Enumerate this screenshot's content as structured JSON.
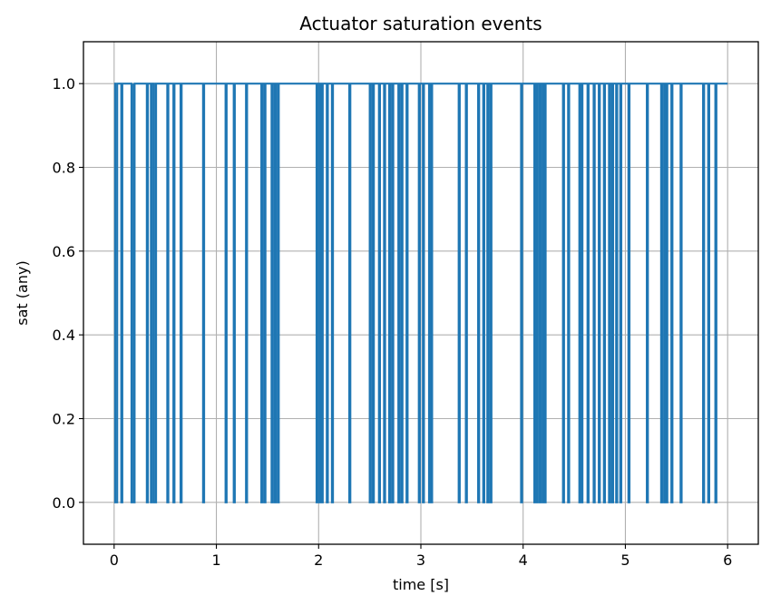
{
  "chart_data": {
    "type": "line",
    "title": "Actuator saturation events",
    "xlabel": "time [s]",
    "ylabel": "sat (any)",
    "xlim": [
      -0.3,
      6.3
    ],
    "ylim": [
      -0.1,
      1.1
    ],
    "xticks": [
      0,
      1,
      2,
      3,
      4,
      5,
      6
    ],
    "xtick_labels": [
      "0",
      "1",
      "2",
      "3",
      "4",
      "5",
      "6"
    ],
    "yticks": [
      0.0,
      0.2,
      0.4,
      0.6,
      0.8,
      1.0
    ],
    "ytick_labels": [
      "0.0",
      "0.2",
      "0.4",
      "0.6",
      "0.8",
      "1.0"
    ],
    "grid": true,
    "step": "post",
    "series": [
      {
        "color": "#1f77b4",
        "x_range": [
          0,
          6
        ],
        "baseline": 1,
        "zero_intervals": [
          [
            0.01,
            0.03
          ],
          [
            0.07,
            0.08
          ],
          [
            0.17,
            0.19
          ],
          [
            0.19,
            0.2
          ],
          [
            0.32,
            0.33
          ],
          [
            0.36,
            0.37
          ],
          [
            0.39,
            0.41
          ],
          [
            0.52,
            0.53
          ],
          [
            0.58,
            0.59
          ],
          [
            0.65,
            0.66
          ],
          [
            0.87,
            0.88
          ],
          [
            1.09,
            1.1
          ],
          [
            1.17,
            1.18
          ],
          [
            1.29,
            1.3
          ],
          [
            1.44,
            1.45
          ],
          [
            1.47,
            1.48
          ],
          [
            1.54,
            1.55
          ],
          [
            1.57,
            1.58
          ],
          [
            1.6,
            1.61
          ],
          [
            1.98,
            1.99
          ],
          [
            2.01,
            2.02
          ],
          [
            2.03,
            2.04
          ],
          [
            2.08,
            2.09
          ],
          [
            2.13,
            2.14
          ],
          [
            2.3,
            2.31
          ],
          [
            2.5,
            2.51
          ],
          [
            2.53,
            2.54
          ],
          [
            2.59,
            2.6
          ],
          [
            2.64,
            2.65
          ],
          [
            2.69,
            2.7
          ],
          [
            2.72,
            2.73
          ],
          [
            2.78,
            2.79
          ],
          [
            2.81,
            2.82
          ],
          [
            2.86,
            2.87
          ],
          [
            2.98,
            2.99
          ],
          [
            3.02,
            3.03
          ],
          [
            3.08,
            3.09
          ],
          [
            3.1,
            3.11
          ],
          [
            3.37,
            3.38
          ],
          [
            3.44,
            3.45
          ],
          [
            3.56,
            3.57
          ],
          [
            3.61,
            3.62
          ],
          [
            3.65,
            3.66
          ],
          [
            3.68,
            3.69
          ],
          [
            3.98,
            3.99
          ],
          [
            4.11,
            4.12
          ],
          [
            4.13,
            4.14
          ],
          [
            4.16,
            4.17
          ],
          [
            4.19,
            4.2
          ],
          [
            4.21,
            4.22
          ],
          [
            4.39,
            4.4
          ],
          [
            4.44,
            4.45
          ],
          [
            4.55,
            4.56
          ],
          [
            4.57,
            4.58
          ],
          [
            4.63,
            4.64
          ],
          [
            4.69,
            4.7
          ],
          [
            4.74,
            4.75
          ],
          [
            4.79,
            4.8
          ],
          [
            4.84,
            4.85
          ],
          [
            4.87,
            4.88
          ],
          [
            4.91,
            4.92
          ],
          [
            4.95,
            4.96
          ],
          [
            5.03,
            5.04
          ],
          [
            5.21,
            5.22
          ],
          [
            5.35,
            5.36
          ],
          [
            5.38,
            5.39
          ],
          [
            5.4,
            5.41
          ],
          [
            5.45,
            5.46
          ],
          [
            5.54,
            5.55
          ],
          [
            5.76,
            5.77
          ],
          [
            5.81,
            5.82
          ],
          [
            5.88,
            5.89
          ]
        ]
      }
    ]
  }
}
